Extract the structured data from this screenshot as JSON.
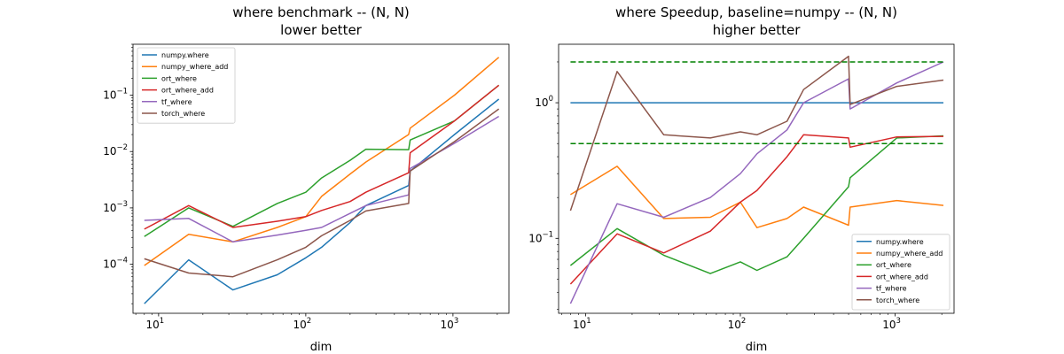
{
  "colors": {
    "numpy.where": "#1f77b4",
    "numpy_where_add": "#ff7f0e",
    "ort_where": "#2ca02c",
    "ort_where_add": "#d62728",
    "tf_where": "#9467bd",
    "torch_where": "#8c564b",
    "reference": "#008000"
  },
  "chart_data": [
    {
      "type": "line",
      "title": "where benchmark -- (N, N)",
      "subtitle": "lower better",
      "xlabel": "dim",
      "ylabel": "",
      "xscale": "log",
      "yscale": "log",
      "xlim": [
        6.7,
        2400
      ],
      "ylim": [
        1.35e-05,
        0.8
      ],
      "xticks": [
        {
          "v": 10,
          "base": "10",
          "exp": "1"
        },
        {
          "v": 100,
          "base": "10",
          "exp": "2"
        },
        {
          "v": 1000,
          "base": "10",
          "exp": "3"
        }
      ],
      "yticks": [
        {
          "v": 0.0001,
          "base": "10",
          "exp": "−4"
        },
        {
          "v": 0.001,
          "base": "10",
          "exp": "−3"
        },
        {
          "v": 0.01,
          "base": "10",
          "exp": "−2"
        },
        {
          "v": 0.1,
          "base": "10",
          "exp": "−1"
        }
      ],
      "legend": "top-left",
      "grid": false,
      "series": [
        {
          "name": "numpy.where",
          "x": [
            8,
            16,
            32,
            64,
            100,
            128,
            200,
            256,
            500,
            512,
            1024,
            2048
          ],
          "y": [
            2e-05,
            0.00012,
            3.5e-05,
            6.5e-05,
            0.00013,
            0.0002,
            0.00055,
            0.0011,
            0.0025,
            0.0045,
            0.02,
            0.085
          ]
        },
        {
          "name": "numpy_where_add",
          "x": [
            8,
            16,
            32,
            64,
            100,
            128,
            200,
            256,
            500,
            512,
            1024,
            2048
          ],
          "y": [
            9.5e-05,
            0.00034,
            0.00025,
            0.00045,
            0.0007,
            0.0016,
            0.004,
            0.0065,
            0.02,
            0.026,
            0.1,
            0.47
          ]
        },
        {
          "name": "ort_where",
          "x": [
            8,
            16,
            32,
            64,
            100,
            128,
            200,
            256,
            500,
            512,
            1024,
            2048
          ],
          "y": [
            0.00031,
            0.001,
            0.00047,
            0.0012,
            0.0019,
            0.0034,
            0.007,
            0.011,
            0.0108,
            0.016,
            0.035,
            0.15
          ]
        },
        {
          "name": "ort_where_add",
          "x": [
            8,
            16,
            32,
            64,
            100,
            128,
            200,
            256,
            500,
            512,
            1024,
            2048
          ],
          "y": [
            0.00042,
            0.0011,
            0.00045,
            0.00058,
            0.0007,
            0.0009,
            0.0013,
            0.0019,
            0.0042,
            0.0095,
            0.035,
            0.15
          ]
        },
        {
          "name": "tf_where",
          "x": [
            8,
            16,
            32,
            64,
            100,
            128,
            200,
            256,
            500,
            512,
            1024,
            2048
          ],
          "y": [
            0.0006,
            0.00065,
            0.00025,
            0.00033,
            0.0004,
            0.00045,
            0.0008,
            0.0011,
            0.0017,
            0.005,
            0.014,
            0.042
          ]
        },
        {
          "name": "torch_where",
          "x": [
            8,
            16,
            32,
            64,
            100,
            128,
            200,
            256,
            500,
            512,
            1024,
            2048
          ],
          "y": [
            0.000125,
            7e-05,
            6e-05,
            0.00012,
            0.0002,
            0.00032,
            0.0006,
            0.00088,
            0.0012,
            0.0045,
            0.015,
            0.057
          ]
        }
      ],
      "reference_lines": []
    },
    {
      "type": "line",
      "title": "where Speedup, baseline=numpy -- (N, N)",
      "subtitle": "higher better",
      "xlabel": "dim",
      "ylabel": "",
      "xscale": "log",
      "yscale": "log",
      "xlim": [
        6.7,
        2400
      ],
      "ylim": [
        0.028,
        2.7
      ],
      "xticks": [
        {
          "v": 10,
          "base": "10",
          "exp": "1"
        },
        {
          "v": 100,
          "base": "10",
          "exp": "2"
        },
        {
          "v": 1000,
          "base": "10",
          "exp": "3"
        }
      ],
      "yticks": [
        {
          "v": 0.1,
          "base": "10",
          "exp": "−1"
        },
        {
          "v": 1,
          "base": "10",
          "exp": "0"
        }
      ],
      "legend": "bottom-right",
      "grid": false,
      "series": [
        {
          "name": "numpy.where",
          "x": [
            8,
            16,
            32,
            64,
            100,
            128,
            200,
            256,
            500,
            512,
            1024,
            2048
          ],
          "y": [
            1,
            1,
            1,
            1,
            1,
            1,
            1,
            1,
            1,
            1,
            1,
            1
          ]
        },
        {
          "name": "numpy_where_add",
          "x": [
            8,
            16,
            32,
            64,
            100,
            128,
            200,
            256,
            500,
            512,
            1024,
            2048
          ],
          "y": [
            0.21,
            0.34,
            0.14,
            0.143,
            0.185,
            0.12,
            0.14,
            0.17,
            0.125,
            0.17,
            0.19,
            0.175
          ]
        },
        {
          "name": "ort_where",
          "x": [
            8,
            16,
            32,
            64,
            100,
            128,
            200,
            256,
            500,
            512,
            1024,
            2048
          ],
          "y": [
            0.063,
            0.118,
            0.075,
            0.055,
            0.067,
            0.058,
            0.073,
            0.1,
            0.24,
            0.28,
            0.55,
            0.57
          ]
        },
        {
          "name": "ort_where_add",
          "x": [
            8,
            16,
            32,
            64,
            100,
            128,
            200,
            256,
            500,
            512,
            1024,
            2048
          ],
          "y": [
            0.046,
            0.108,
            0.078,
            0.113,
            0.185,
            0.225,
            0.4,
            0.58,
            0.55,
            0.47,
            0.56,
            0.565
          ]
        },
        {
          "name": "tf_where",
          "x": [
            8,
            16,
            32,
            64,
            100,
            128,
            200,
            256,
            500,
            512,
            1024,
            2048
          ],
          "y": [
            0.033,
            0.18,
            0.143,
            0.2,
            0.3,
            0.42,
            0.63,
            1,
            1.5,
            0.9,
            1.4,
            2
          ]
        },
        {
          "name": "torch_where",
          "x": [
            8,
            16,
            32,
            64,
            100,
            128,
            200,
            256,
            500,
            512,
            1024,
            2048
          ],
          "y": [
            0.16,
            1.7,
            0.58,
            0.55,
            0.61,
            0.58,
            0.73,
            1.25,
            2.2,
            0.97,
            1.32,
            1.47
          ]
        }
      ],
      "reference_lines": [
        {
          "y": 2,
          "x_from": 8,
          "x_to": 2048,
          "style": "dashed"
        },
        {
          "y": 0.5,
          "x_from": 8,
          "x_to": 2048,
          "style": "dashed"
        }
      ]
    }
  ]
}
